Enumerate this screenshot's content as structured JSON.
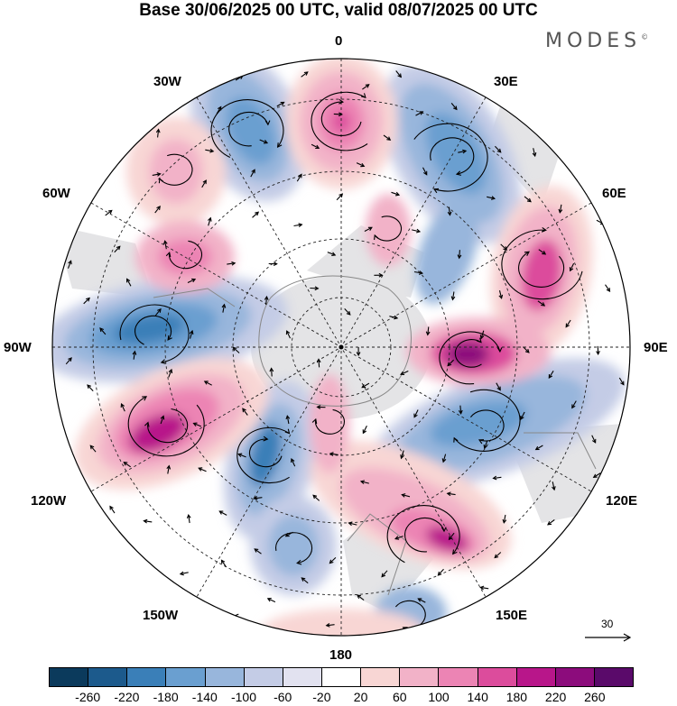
{
  "header": {
    "title": "Base 30/06/2025 00 UTC, valid 08/07/2025 00 UTC",
    "brand": "MODES",
    "brand_mark": "©"
  },
  "map": {
    "projection": "south-polar-stereographic",
    "longitude_labels": {
      "lon_0": "0",
      "lon_30e": "30E",
      "lon_60e": "60E",
      "lon_90e": "90E",
      "lon_120e": "120E",
      "lon_150e": "150E",
      "lon_180": "180",
      "lon_150w": "150W",
      "lon_120w": "120W",
      "lon_90w": "90W",
      "lon_60w": "60W",
      "lon_30w": "30W"
    },
    "reference_vector_label": "30"
  },
  "colorbar": {
    "ticks": [
      "-260",
      "-220",
      "-180",
      "-140",
      "-100",
      "-60",
      "-20",
      "20",
      "60",
      "100",
      "140",
      "180",
      "220",
      "260"
    ],
    "colors": [
      "#0b3a5c",
      "#1c5a8c",
      "#3a7fb8",
      "#6a9fd0",
      "#98b6dc",
      "#c4cce6",
      "#e2e2f0",
      "#ffffff",
      "#f8d6d4",
      "#f2b2c8",
      "#ec84b4",
      "#dc4c9c",
      "#b8168a",
      "#8c0c7c",
      "#5a0a6a"
    ]
  }
}
